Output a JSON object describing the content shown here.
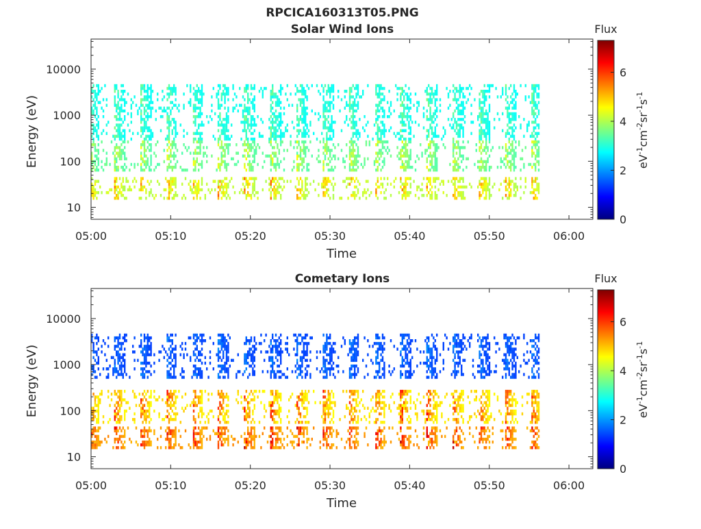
{
  "figure": {
    "title": "RPCICA160313T05.PNG"
  },
  "colormap": [
    "#00007f",
    "#0000ff",
    "#007fff",
    "#00ffff",
    "#7fff7f",
    "#ffff00",
    "#ff7f00",
    "#ff0000",
    "#7f0000"
  ],
  "chart_data": [
    {
      "type": "heatmap",
      "title": "Solar Wind Ions",
      "xlabel": "Time",
      "ylabel": "Energy (eV)",
      "yscale": "log",
      "xticks": [
        "05:00",
        "05:10",
        "05:20",
        "05:30",
        "05:40",
        "05:50",
        "06:00"
      ],
      "xlim_min": [
        0,
        63
      ],
      "data_end_min": 56.5,
      "yticks": [
        "10",
        "100",
        "1000",
        "10000"
      ],
      "ylim_ev": [
        5.5,
        45000
      ],
      "colorbar": {
        "label": "Flux",
        "units": "eV-1cm-2sr-1s-1",
        "range": [
          0,
          7.3
        ],
        "ticks": [
          "0",
          "2",
          "4",
          "6"
        ]
      },
      "scan_period_min": 3.27,
      "scan_start_min": 2.8,
      "features": [
        {
          "band": "high",
          "energy_ev": [
            300,
            5000
          ],
          "flux": [
            2.2,
            3.8
          ]
        },
        {
          "band": "mid",
          "energy_ev": [
            60,
            300
          ],
          "flux": [
            2.5,
            4.8
          ]
        },
        {
          "band": "low",
          "energy_ev": [
            15,
            45
          ],
          "flux": [
            3.0,
            5.8
          ]
        }
      ],
      "grid": false
    },
    {
      "type": "heatmap",
      "title": "Cometary Ions",
      "xlabel": "Time",
      "ylabel": "Energy (eV)",
      "yscale": "log",
      "xticks": [
        "05:00",
        "05:10",
        "05:20",
        "05:30",
        "05:40",
        "05:50",
        "06:00"
      ],
      "xlim_min": [
        0,
        63
      ],
      "data_end_min": 56.5,
      "yticks": [
        "10",
        "100",
        "1000",
        "10000"
      ],
      "ylim_ev": [
        5.5,
        45000
      ],
      "colorbar": {
        "label": "Flux",
        "units": "eV-1cm-2sr-1s-1",
        "range": [
          0,
          7.3
        ],
        "ticks": [
          "0",
          "2",
          "4",
          "6"
        ]
      },
      "scan_period_min": 3.27,
      "scan_start_min": 2.8,
      "features": [
        {
          "band": "high",
          "energy_ev": [
            500,
            5000
          ],
          "flux": [
            1.0,
            2.0
          ]
        },
        {
          "band": "mid",
          "energy_ev": [
            50,
            300
          ],
          "flux": [
            3.5,
            6.5
          ]
        },
        {
          "band": "low",
          "energy_ev": [
            15,
            45
          ],
          "flux": [
            4.0,
            7.0
          ]
        }
      ],
      "grid": false
    }
  ]
}
